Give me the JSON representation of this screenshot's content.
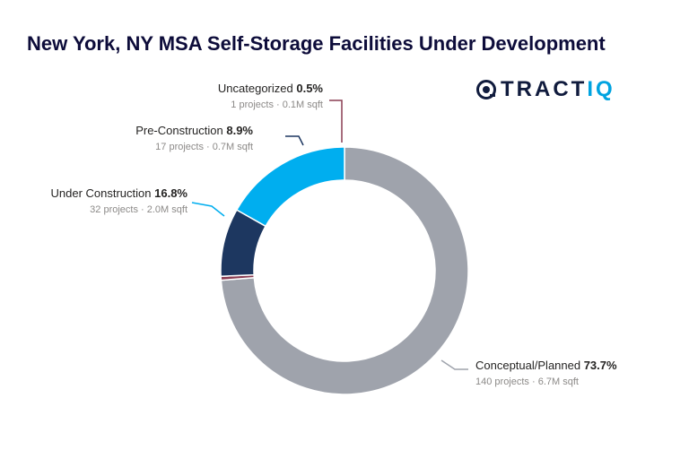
{
  "title": "New York, NY MSA Self-Storage Facilities Under Development",
  "logo": {
    "text_main": "TRACT",
    "text_accent": "IQ"
  },
  "chart_data": {
    "type": "pie",
    "variant": "donut",
    "title": "New York, NY MSA Self-Storage Facilities Under Development",
    "slices": [
      {
        "label": "Conceptual/Planned",
        "value": 73.7,
        "pct_label": "73.7%",
        "detail": "140 projects · 6.7M sqft",
        "color": "#9fa3ac"
      },
      {
        "label": "Uncategorized",
        "value": 0.5,
        "pct_label": "0.5%",
        "detail": "1 projects · 0.1M sqft",
        "color": "#8a3d52"
      },
      {
        "label": "Pre-Construction",
        "value": 8.9,
        "pct_label": "8.9%",
        "detail": "17 projects · 0.7M sqft",
        "color": "#1d3760"
      },
      {
        "label": "Under Construction",
        "value": 16.8,
        "pct_label": "16.8%",
        "detail": "32 projects · 2.0M sqft",
        "color": "#00aeef"
      }
    ]
  }
}
